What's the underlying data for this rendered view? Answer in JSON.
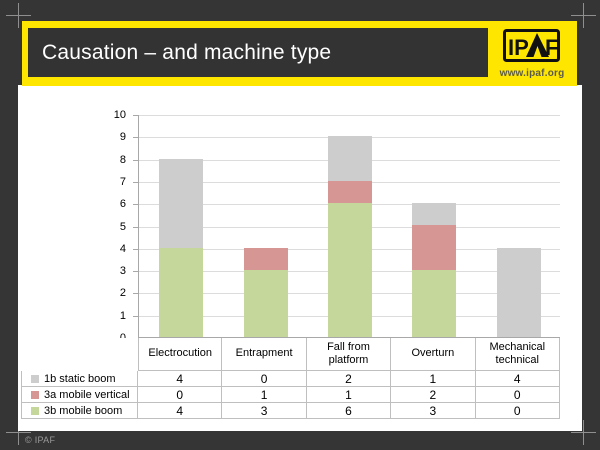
{
  "colors": {
    "background": "#353535",
    "slide": "#ffffff",
    "accent_yellow": "#ffe600",
    "title_box": "#333333",
    "gridline": "#dcdcdc",
    "axis": "#a8a8a8",
    "table_border": "#bfbfbf"
  },
  "header": {
    "title": "Causation – and machine type",
    "logo": {
      "name": "IPAF",
      "glyphs_left": "IP",
      "glyph_right": "F",
      "url_text": "www.ipaf.org"
    }
  },
  "chart_data": {
    "type": "bar",
    "stacked": true,
    "categories": [
      "Electrocution",
      "Entrapment",
      "Fall from platform",
      "Overturn",
      "Mechanical technical"
    ],
    "series": [
      {
        "name": "1b static boom",
        "color": "#cdcdcd",
        "values": [
          4,
          0,
          2,
          1,
          4
        ]
      },
      {
        "name": "3a mobile vertical",
        "color": "#d69694",
        "values": [
          0,
          1,
          1,
          2,
          0
        ]
      },
      {
        "name": "3b mobile boom",
        "color": "#c5d79b",
        "values": [
          4,
          3,
          6,
          3,
          0
        ]
      }
    ],
    "ylim": [
      0,
      10
    ],
    "yticks": [
      0,
      1,
      2,
      3,
      4,
      5,
      6,
      7,
      8,
      9,
      10
    ],
    "grid": true,
    "legend_position": "data table below chart, one row per series"
  },
  "footer": {
    "copyright": "© IPAF"
  }
}
